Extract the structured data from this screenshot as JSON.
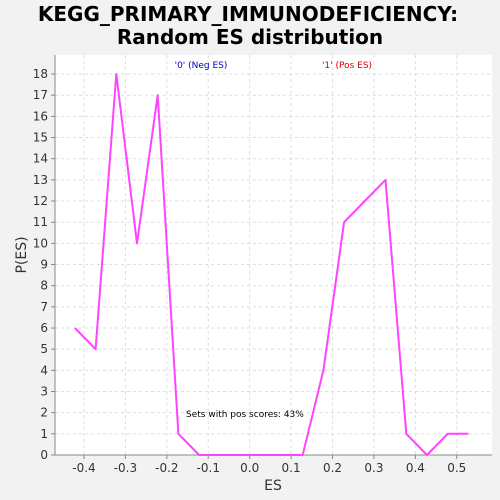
{
  "chart_data": {
    "type": "line",
    "title_line1": "KEGG_PRIMARY_IMMUNODEFICIENCY:",
    "title_line2": "Random ES distribution",
    "xlabel": "ES",
    "ylabel": "P(ES)",
    "xlim": [
      -0.47,
      0.585
    ],
    "ylim": [
      0,
      18.9
    ],
    "xticks": [
      -0.4,
      -0.3,
      -0.2,
      -0.1,
      0.0,
      0.1,
      0.2,
      0.3,
      0.4,
      0.5
    ],
    "xtick_labels": [
      "-0.4",
      "-0.3",
      "-0.2",
      "-0.1",
      "0.0",
      "0.1",
      "0.2",
      "0.3",
      "0.4",
      "0.5"
    ],
    "yticks": [
      0,
      1,
      2,
      3,
      4,
      5,
      6,
      7,
      8,
      9,
      10,
      11,
      12,
      13,
      14,
      15,
      16,
      17,
      18
    ],
    "grid": true,
    "legend": [
      {
        "label": "'0' (Neg ES)",
        "color": "#0000cc"
      },
      {
        "label": "'1' (Pos ES)",
        "color": "#dd0000"
      }
    ],
    "annotation": "Sets with pos scores: 43%",
    "series": [
      {
        "color": "#ff44ff",
        "x": [
          -0.422,
          -0.372,
          -0.322,
          -0.272,
          -0.222,
          -0.172,
          -0.122,
          -0.072,
          -0.022,
          0.028,
          0.078,
          0.128,
          0.178,
          0.228,
          0.278,
          0.328,
          0.378,
          0.428,
          0.478,
          0.528
        ],
        "y": [
          6,
          5,
          18,
          10,
          17,
          1,
          0,
          0,
          0,
          0,
          0,
          0,
          4,
          11,
          12,
          13,
          1,
          0,
          1,
          1
        ]
      }
    ]
  }
}
